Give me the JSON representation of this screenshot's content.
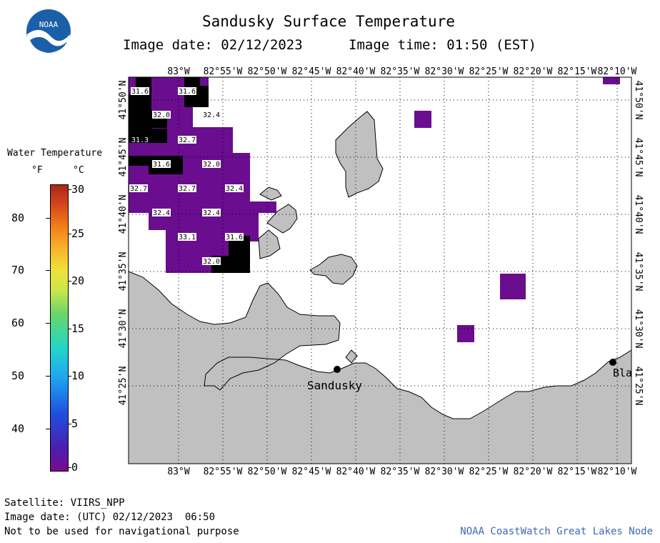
{
  "header": {
    "title": "Sandusky Surface Temperature",
    "image_date_label": "Image date: 02/12/2023",
    "image_time_label": "Image time: 01:50 (EST)"
  },
  "logo": {
    "text": "NOAA"
  },
  "legend": {
    "title": "Water Temperature",
    "unit_f": "°F",
    "unit_c": "°C",
    "f_ticks": [
      "80",
      "70",
      "60",
      "50",
      "40"
    ],
    "c_ticks": [
      "30",
      "25",
      "20",
      "15",
      "10",
      "5",
      "0"
    ]
  },
  "map": {
    "lon_labels": [
      "83°W",
      "82°55'W",
      "82°50'W",
      "82°45'W",
      "82°40'W",
      "82°35'W",
      "82°30'W",
      "82°25'W",
      "82°20'W",
      "82°15'W",
      "82°10'W"
    ],
    "lat_labels": [
      "41°50'N",
      "41°45'N",
      "41°40'N",
      "41°35'N",
      "41°30'N",
      "41°25'N"
    ],
    "places": [
      {
        "name": "Sandusky"
      },
      {
        "name": "Bla"
      }
    ],
    "temps": [
      "31.6",
      "31.6",
      "32.0",
      "32.4",
      "31.3",
      "32.7",
      "31.6",
      "32.0",
      "32.7",
      "32.7",
      "32.4",
      "32.4",
      "32.4",
      "33.1",
      "31.6",
      "32.0"
    ],
    "colors": {
      "land": "#c0c0c0",
      "water": "#ffffff",
      "cold": "#6a0d8f",
      "nodata": "#000000"
    }
  },
  "footer": {
    "satellite": "Satellite: VIIRS_NPP",
    "utc_date": "Image date: (UTC) 02/12/2023  06:50",
    "disclaimer": "Not to be used for navigational purpose",
    "credit": "NOAA CoastWatch Great Lakes Node"
  }
}
